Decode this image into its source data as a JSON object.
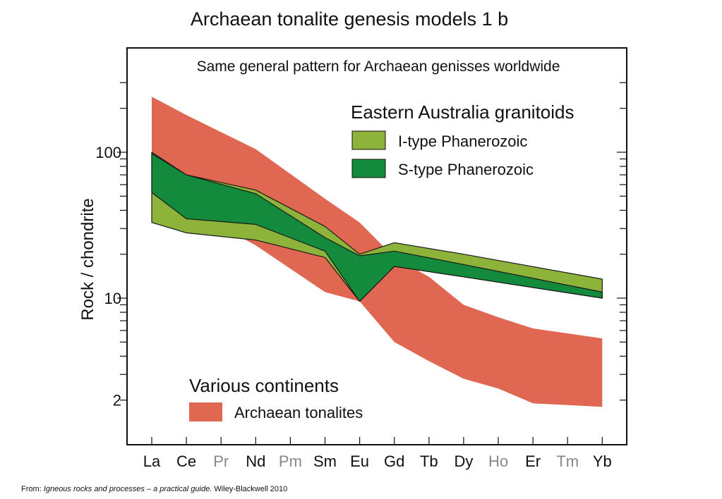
{
  "slide": {
    "title": "Archaean tonalite genesis models 1 b",
    "source_prefix": "From: ",
    "source_title": "Igneous rocks and processes – a practical guide.",
    "source_suffix": " Wiley-Blackwell 2010"
  },
  "chart_data": {
    "type": "area",
    "title": "Same general pattern for Archaean genisses worldwide",
    "xlabel": "",
    "ylabel": "Rock / chondrite",
    "y_scale": "log",
    "ylim": [
      1.2,
      300
    ],
    "categories": [
      "La",
      "Ce",
      "Pr",
      "Nd",
      "Pm",
      "Sm",
      "Eu",
      "Gd",
      "Tb",
      "Dy",
      "Ho",
      "Er",
      "Tm",
      "Yb"
    ],
    "category_colors": [
      "#111111",
      "#111111",
      "#888888",
      "#111111",
      "#888888",
      "#111111",
      "#111111",
      "#111111",
      "#111111",
      "#111111",
      "#888888",
      "#111111",
      "#888888",
      "#111111"
    ],
    "y_ticks": [
      100,
      10,
      2
    ],
    "y_tick_labels": [
      "100",
      "10",
      "2"
    ],
    "legend_groups": [
      {
        "heading": "Eastern Australia granitoids",
        "position": "top-right",
        "entries": [
          {
            "label": "I-type Phanerozoic",
            "color": "#8db33a"
          },
          {
            "label": "S-type Phanerozoic",
            "color": "#138a3c"
          }
        ]
      },
      {
        "heading": "Various continents",
        "position": "bottom-left",
        "entries": [
          {
            "label": "Archaean tonalites",
            "color": "#e06752"
          }
        ]
      }
    ],
    "series": [
      {
        "name": "Archaean tonalites",
        "color": "#e06752",
        "x": [
          "La",
          "Ce",
          "Nd",
          "Sm",
          "Eu",
          "Gd",
          "Tb",
          "Dy",
          "Ho",
          "Er",
          "Yb"
        ],
        "upper": [
          240,
          180,
          105,
          48,
          33,
          19,
          14,
          9,
          7.4,
          6.2,
          5.3
        ],
        "lower": [
          95,
          42,
          23,
          11,
          9.5,
          5.0,
          3.7,
          2.8,
          2.4,
          1.9,
          1.8
        ]
      },
      {
        "name": "I-type Phanerozoic",
        "color": "#8db33a",
        "x": [
          "La",
          "Ce",
          "Nd",
          "Sm",
          "Eu",
          "Gd",
          "Dy",
          "Yb"
        ],
        "upper": [
          100,
          70,
          55,
          31,
          20,
          24,
          20,
          13.5
        ],
        "lower": [
          33,
          28,
          25,
          19,
          9.5,
          16.5,
          14,
          10
        ]
      },
      {
        "name": "S-type Phanerozoic",
        "color": "#138a3c",
        "x": [
          "La",
          "Ce",
          "Nd",
          "Sm",
          "Eu",
          "Gd",
          "Dy",
          "Yb"
        ],
        "upper": [
          98,
          70,
          52,
          26,
          19.5,
          21,
          17,
          11
        ],
        "lower": [
          53,
          35,
          32,
          21,
          9.5,
          16.5,
          14,
          10
        ]
      }
    ]
  }
}
